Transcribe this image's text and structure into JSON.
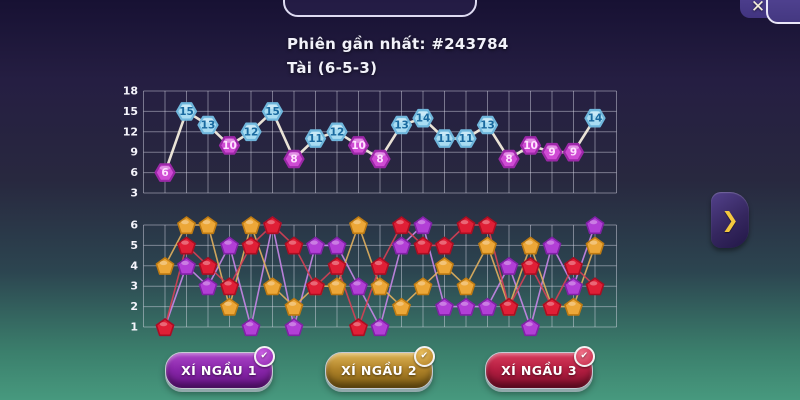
{
  "header": {
    "latest_round": "Phiên gần nhất: #243784",
    "latest_result": "Tài (6-5-3)"
  },
  "icons": {
    "close": "✕",
    "chevron_right": "❯",
    "check": "✔"
  },
  "colors": {
    "background_top": "#171133",
    "background_bottom": "#47997e",
    "tai_high_badge": "#a9dcf2",
    "xiu_low_badge": "#cf4bd4",
    "dice1_purple": "#b23fd6",
    "dice2_gold": "#eca738",
    "dice3_red": "#e01f36",
    "accent_gold": "#f4c83e"
  },
  "chart_data": [
    {
      "type": "line",
      "name": "total-history",
      "grid": true,
      "legend_position": "none",
      "ylim": [
        3,
        18
      ],
      "y_ticks": [
        18,
        15,
        12,
        9,
        6,
        3
      ],
      "values": [
        6,
        15,
        13,
        10,
        12,
        15,
        8,
        11,
        12,
        10,
        8,
        13,
        14,
        11,
        11,
        13,
        8,
        10,
        9,
        9,
        14
      ],
      "high_threshold": 11,
      "high_color": "#a9dcf2",
      "low_color": "#cf4bd4",
      "line_color": "#f3edde"
    },
    {
      "type": "line",
      "name": "dice-history",
      "grid": true,
      "legend_position": "none",
      "ylim": [
        1,
        6
      ],
      "y_ticks": [
        6,
        5,
        4,
        3,
        2,
        1
      ],
      "series": [
        {
          "name": "XÍ NGẦU 1",
          "color": "#b23fd6",
          "edge": "#8021a6",
          "line": "#c886e8",
          "values": [
            1,
            4,
            3,
            5,
            1,
            6,
            1,
            5,
            5,
            3,
            1,
            5,
            6,
            2,
            2,
            2,
            4,
            1,
            5,
            3,
            6
          ]
        },
        {
          "name": "XÍ NGẦU 2",
          "color": "#eca738",
          "edge": "#bd7a12",
          "line": "#e2b05e",
          "values": [
            4,
            6,
            6,
            2,
            6,
            3,
            2,
            3,
            3,
            6,
            3,
            2,
            3,
            4,
            3,
            5,
            2,
            5,
            2,
            2,
            5
          ]
        },
        {
          "name": "XÍ NGẦU 3",
          "color": "#e01f36",
          "edge": "#aa0e22",
          "line": "#d64055",
          "values": [
            1,
            5,
            4,
            3,
            5,
            6,
            5,
            3,
            4,
            1,
            4,
            6,
            5,
            5,
            6,
            6,
            2,
            4,
            2,
            4,
            3
          ]
        }
      ]
    }
  ],
  "buttons": [
    {
      "label": "XÍ NGẦU 1",
      "theme": "purple"
    },
    {
      "label": "XÍ NGẦU 2",
      "theme": "gold"
    },
    {
      "label": "XÍ NGẦU 3",
      "theme": "red"
    }
  ]
}
